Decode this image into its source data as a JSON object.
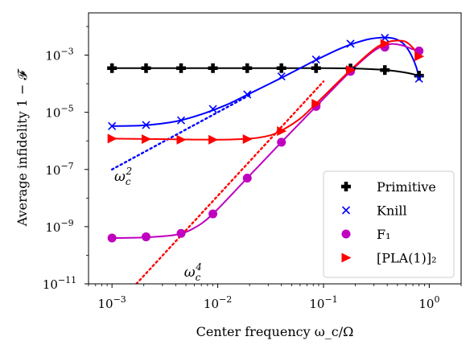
{
  "chart_data": {
    "type": "line",
    "xscale": "log",
    "yscale": "log",
    "xlim": [
      0.0006,
      2.0
    ],
    "ylim": [
      1e-11,
      0.03
    ],
    "xlabel": "Center frequency ω_c/Ω",
    "ylabel": "Average infidelity 1 − 𝓕",
    "x_ticks": [
      {
        "value": 0.001,
        "base": "10",
        "exp": "−3"
      },
      {
        "value": 0.01,
        "base": "10",
        "exp": "−2"
      },
      {
        "value": 0.1,
        "base": "10",
        "exp": "−1"
      },
      {
        "value": 1,
        "base": "10",
        "exp": "0"
      }
    ],
    "y_ticks": [
      {
        "value": 1e-11,
        "base": "10",
        "exp": "−11"
      },
      {
        "value": 1e-09,
        "base": "10",
        "exp": "−9"
      },
      {
        "value": 1e-07,
        "base": "10",
        "exp": "−7"
      },
      {
        "value": 1e-05,
        "base": "10",
        "exp": "−5"
      },
      {
        "value": 0.001,
        "base": "10",
        "exp": "−3"
      }
    ],
    "legend_position": "lower right",
    "series": [
      {
        "name": "Primitive",
        "color": "#000000",
        "marker": "plus",
        "points": [
          [
            0.001,
            0.00035
          ],
          [
            0.0021,
            0.00035
          ],
          [
            0.0045,
            0.00035
          ],
          [
            0.009,
            0.00035
          ],
          [
            0.019,
            0.00035
          ],
          [
            0.04,
            0.00035
          ],
          [
            0.085,
            0.00035
          ],
          [
            0.18,
            0.00034
          ],
          [
            0.38,
            0.0003
          ],
          [
            0.8,
            0.00019
          ]
        ],
        "curve": [
          [
            0.001,
            0.00035
          ],
          [
            0.01,
            0.00035
          ],
          [
            0.1,
            0.00035
          ],
          [
            0.2,
            0.00034
          ],
          [
            0.35,
            0.00031
          ],
          [
            0.5,
            0.00027
          ],
          [
            0.65,
            0.00023
          ],
          [
            0.8,
            0.00019
          ]
        ]
      },
      {
        "name": "Knill",
        "color": "#0000ff",
        "marker": "x",
        "points": [
          [
            0.001,
            3.3e-06
          ],
          [
            0.0021,
            3.6e-06
          ],
          [
            0.0045,
            5.2e-06
          ],
          [
            0.009,
            1.3e-05
          ],
          [
            0.019,
            4.2e-05
          ],
          [
            0.04,
            0.00018
          ],
          [
            0.085,
            0.0007
          ],
          [
            0.18,
            0.0025
          ],
          [
            0.38,
            0.004
          ],
          [
            0.8,
            0.00015
          ]
        ],
        "curve": [
          [
            0.001,
            3.3e-06
          ],
          [
            0.002,
            3.5e-06
          ],
          [
            0.004,
            4.8e-06
          ],
          [
            0.007,
            8.5e-06
          ],
          [
            0.012,
            1.8e-05
          ],
          [
            0.02,
            4.5e-05
          ],
          [
            0.04,
            0.00016
          ],
          [
            0.08,
            0.0006
          ],
          [
            0.15,
            0.0018
          ],
          [
            0.25,
            0.0034
          ],
          [
            0.35,
            0.0041
          ],
          [
            0.45,
            0.0039
          ],
          [
            0.55,
            0.0028
          ],
          [
            0.65,
            0.0013
          ],
          [
            0.75,
            0.0004
          ],
          [
            0.8,
            0.00015
          ]
        ]
      },
      {
        "name": "F₁",
        "color": "#bf00bf",
        "marker": "circle",
        "points": [
          [
            0.001,
            4e-10
          ],
          [
            0.0021,
            4.4e-10
          ],
          [
            0.0045,
            5.8e-10
          ],
          [
            0.009,
            2.8e-09
          ],
          [
            0.019,
            5e-08
          ],
          [
            0.04,
            9e-07
          ],
          [
            0.085,
            1.6e-05
          ],
          [
            0.18,
            0.00027
          ],
          [
            0.38,
            0.0019
          ],
          [
            0.8,
            0.0014
          ]
        ],
        "curve": [
          [
            0.001,
            4e-10
          ],
          [
            0.002,
            4.2e-10
          ],
          [
            0.004,
            5.2e-10
          ],
          [
            0.006,
            9e-10
          ],
          [
            0.009,
            2.8e-09
          ],
          [
            0.019,
            5e-08
          ],
          [
            0.04,
            9e-07
          ],
          [
            0.085,
            1.6e-05
          ],
          [
            0.18,
            0.00027
          ],
          [
            0.3,
            0.0014
          ],
          [
            0.42,
            0.0024
          ],
          [
            0.55,
            0.0022
          ],
          [
            0.7,
            0.0016
          ],
          [
            0.8,
            0.0014
          ]
        ]
      },
      {
        "name": "[PLA(1)]₂",
        "color": "#ff0000",
        "marker": "triangle-right",
        "points": [
          [
            0.001,
            1.2e-06
          ],
          [
            0.0021,
            1.15e-06
          ],
          [
            0.0045,
            1.1e-06
          ],
          [
            0.009,
            1.1e-06
          ],
          [
            0.019,
            1.15e-06
          ],
          [
            0.04,
            2.2e-06
          ],
          [
            0.085,
            2e-05
          ],
          [
            0.18,
            0.0003
          ],
          [
            0.38,
            0.0025
          ],
          [
            0.8,
            0.0009
          ]
        ],
        "curve": [
          [
            0.001,
            1.2e-06
          ],
          [
            0.003,
            1.15e-06
          ],
          [
            0.01,
            1.1e-06
          ],
          [
            0.02,
            1.2e-06
          ],
          [
            0.03,
            1.5e-06
          ],
          [
            0.04,
            2.3e-06
          ],
          [
            0.06,
            6e-06
          ],
          [
            0.085,
            2e-05
          ],
          [
            0.18,
            0.0003
          ],
          [
            0.3,
            0.0016
          ],
          [
            0.4,
            0.0028
          ],
          [
            0.5,
            0.0032
          ],
          [
            0.6,
            0.0029
          ],
          [
            0.7,
            0.0018
          ],
          [
            0.8,
            0.0009
          ]
        ]
      }
    ],
    "reference_lines": [
      {
        "color": "#0000ff",
        "style": "dotted",
        "slope": 2,
        "points": [
          [
            0.001,
            1e-07
          ],
          [
            0.02,
            4e-05
          ]
        ]
      },
      {
        "color": "#ff0000",
        "style": "dotted",
        "slope": 4,
        "points": [
          [
            0.0017,
            1e-11
          ],
          [
            0.1,
            0.00012
          ]
        ]
      }
    ],
    "annotations": [
      {
        "base": "ω",
        "sub": "c",
        "sup": "2",
        "at": [
          0.00105,
          4e-08
        ]
      },
      {
        "base": "ω",
        "sub": "c",
        "sup": "4",
        "at": [
          0.0048,
          1.8e-11
        ]
      }
    ]
  }
}
